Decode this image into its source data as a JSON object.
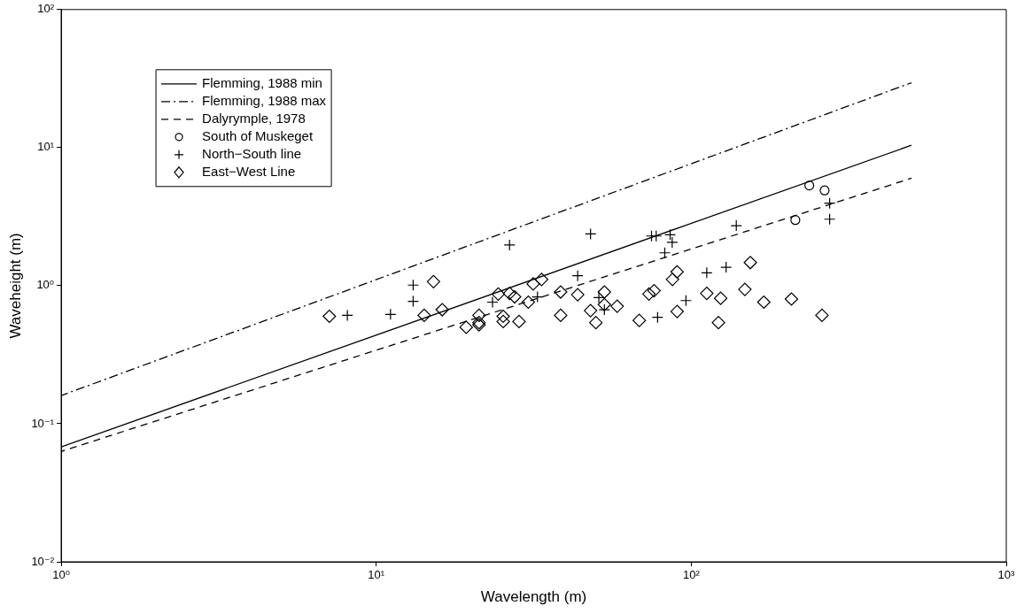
{
  "chart_data": {
    "type": "scatter",
    "xlabel": "Wavelength (m)",
    "ylabel": "Waveheight (m)",
    "log": "xy",
    "grid": false,
    "legend": "top left",
    "xlim": [
      1,
      1000
    ],
    "ylim": [
      0.01,
      100
    ],
    "xticks": [
      {
        "value": 1,
        "label": "10⁰"
      },
      {
        "value": 10,
        "label": "10¹"
      },
      {
        "value": 100,
        "label": "10²"
      },
      {
        "value": 1000,
        "label": "10³"
      }
    ],
    "yticks": [
      {
        "value": 0.01,
        "label": "10⁻²"
      },
      {
        "value": 0.1,
        "label": "10⁻¹"
      },
      {
        "value": 1,
        "label": "10⁰"
      },
      {
        "value": 10,
        "label": "10¹"
      },
      {
        "value": 100,
        "label": "10²"
      }
    ],
    "series": [
      {
        "name": "Flemming, 1988 min",
        "type": "line",
        "color": "#000000",
        "line_style": "solid",
        "marker": "none",
        "x": [
          1,
          500
        ],
        "values": [
          0.068,
          10.4
        ]
      },
      {
        "name": "Flemming, 1988 max",
        "type": "line",
        "color": "#000000",
        "line_style": "dashdot",
        "marker": "none",
        "x": [
          1,
          500
        ],
        "values": [
          0.16,
          29.5
        ]
      },
      {
        "name": "Dalyrymple, 1978",
        "type": "line",
        "color": "#000000",
        "line_style": "dashed",
        "marker": "none",
        "x": [
          1,
          500
        ],
        "values": [
          0.063,
          6
        ]
      },
      {
        "name": "South of Muskeget",
        "type": "scatter",
        "color": "#000000",
        "marker": "circle",
        "x": [
          237,
          265,
          214
        ],
        "values": [
          5.32,
          4.9,
          2.99
        ]
      },
      {
        "name": "North−South line",
        "type": "scatter",
        "color": "#000000",
        "marker": "cross",
        "x": [
          8.1,
          11.1,
          13.1,
          13.1,
          26.5,
          23.4,
          32.5,
          43.6,
          47.9,
          50.9,
          53,
          74.8,
          77.4,
          85.7,
          87,
          82.4,
          78.2,
          96.2,
          112,
          129,
          139,
          275,
          275
        ],
        "values": [
          0.61,
          0.62,
          1.01,
          0.77,
          1.97,
          0.76,
          0.83,
          1.18,
          2.37,
          0.82,
          0.67,
          2.29,
          2.29,
          2.34,
          2.06,
          1.73,
          0.59,
          0.78,
          1.24,
          1.36,
          2.72,
          3.96,
          3.03
        ]
      },
      {
        "name": "East−West Line",
        "type": "scatter",
        "color": "#000000",
        "marker": "diamond",
        "x": [
          7.1,
          15.2,
          14.2,
          16.2,
          19.3,
          21.2,
          21.2,
          21.2,
          24.4,
          25.3,
          25.3,
          26.5,
          27.5,
          28.4,
          30.4,
          31.5,
          33.5,
          38.5,
          38.5,
          43.6,
          47.9,
          49.8,
          53,
          53,
          58.2,
          68.4,
          73.4,
          76.2,
          87.2,
          90.2,
          90.2,
          112,
          122,
          124,
          154,
          148,
          170,
          208,
          260
        ],
        "values": [
          0.6,
          1.07,
          0.61,
          0.67,
          0.5,
          0.61,
          0.54,
          0.52,
          0.87,
          0.6,
          0.55,
          0.88,
          0.83,
          0.55,
          0.76,
          1.03,
          1.11,
          0.9,
          0.61,
          0.86,
          0.66,
          0.54,
          0.9,
          0.73,
          0.71,
          0.56,
          0.87,
          0.92,
          1.11,
          1.26,
          0.65,
          0.88,
          0.54,
          0.81,
          1.47,
          0.94,
          0.76,
          0.8,
          0.61
        ]
      }
    ]
  }
}
